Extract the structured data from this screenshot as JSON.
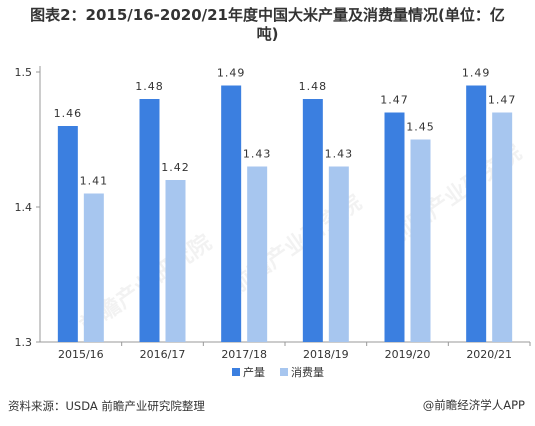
{
  "title": {
    "line1": "图表2：2015/16-2020/21年度中国大米产量及消费量情况(单位：亿",
    "line2": "吨)"
  },
  "chart_data": {
    "type": "bar",
    "categories": [
      "2015/16",
      "2016/17",
      "2017/18",
      "2018/19",
      "2019/20",
      "2020/21"
    ],
    "series": [
      {
        "name": "产量",
        "values": [
          1.46,
          1.48,
          1.49,
          1.48,
          1.47,
          1.49
        ],
        "color": "#3b7fe0"
      },
      {
        "name": "消费量",
        "values": [
          1.41,
          1.42,
          1.43,
          1.43,
          1.45,
          1.47
        ],
        "color": "#a7c6ef"
      }
    ],
    "ylim": [
      1.3,
      1.5
    ],
    "yticks": [
      "1.3",
      "1.4",
      "1.5"
    ],
    "legend_position": "bottom-center",
    "grid": false
  },
  "footer": {
    "source": "资料来源：USDA 前瞻产业研究院整理",
    "brand": "@前瞻经济学人APP"
  },
  "watermark": "前瞻产业研究院"
}
